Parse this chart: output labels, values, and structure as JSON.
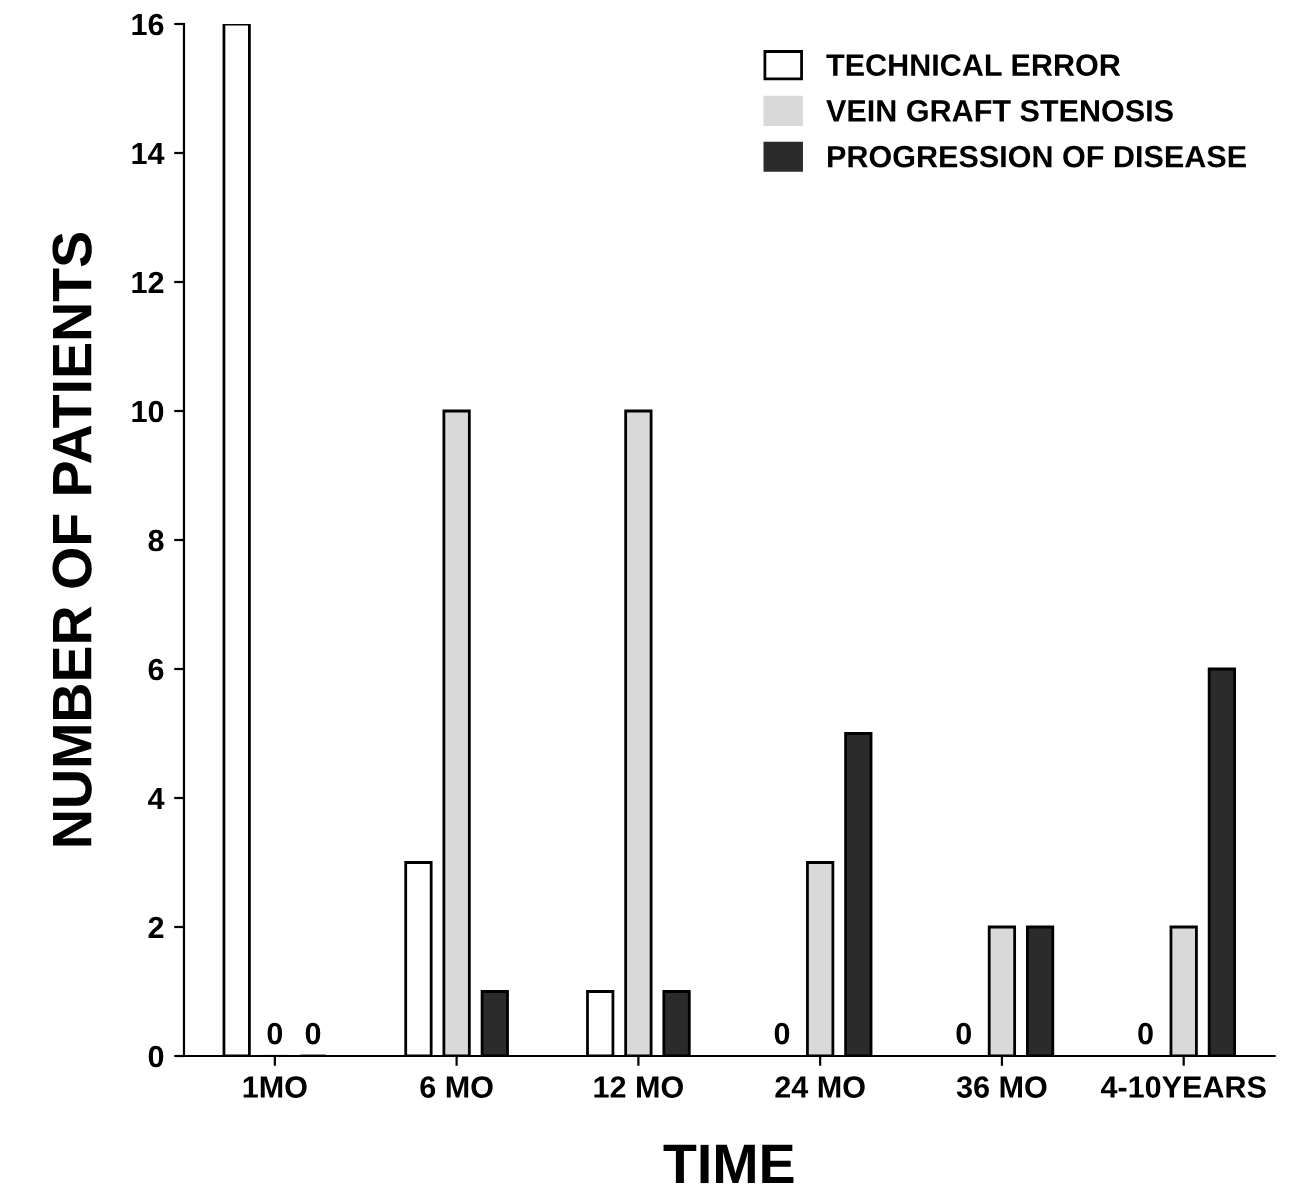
{
  "chart_data": {
    "type": "bar",
    "xlabel": "TIME",
    "ylabel": "NUMBER OF PATIENTS",
    "categories": [
      "1MO",
      "6 MO",
      "12 MO",
      "24 MO",
      "36 MO",
      "4-10YEARS"
    ],
    "series": [
      {
        "name": "TECHNICAL ERROR",
        "color": "#ffffff",
        "values": [
          16,
          3,
          1,
          0,
          0,
          0
        ],
        "value_labels": [
          null,
          null,
          null,
          "0",
          "0",
          "0"
        ]
      },
      {
        "name": "VEIN GRAFT STENOSIS",
        "color": "#d9d9d9",
        "values": [
          0,
          10,
          10,
          3,
          2,
          2
        ],
        "value_labels": [
          "0",
          null,
          null,
          null,
          null,
          null
        ]
      },
      {
        "name": "PROGRESSION OF DISEASE",
        "color": "#2b2b2b",
        "values": [
          0,
          1,
          1,
          5,
          2,
          6
        ],
        "value_labels": [
          "0",
          null,
          null,
          null,
          null,
          null
        ]
      }
    ],
    "ylim": [
      0,
      16
    ],
    "yticks": [
      0,
      2,
      4,
      6,
      8,
      10,
      12,
      14,
      16
    ],
    "grid": false,
    "legend": "top right"
  }
}
